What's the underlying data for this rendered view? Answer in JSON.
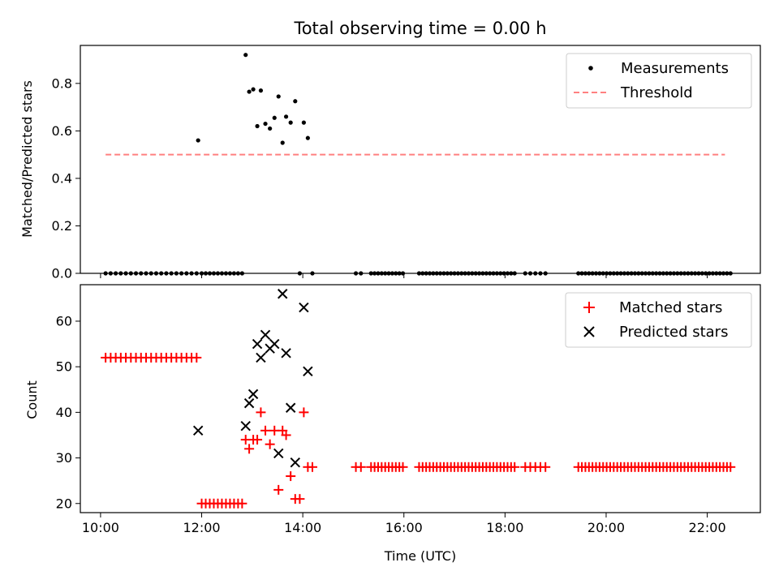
{
  "chart_data": [
    {
      "type": "scatter",
      "title": "Total observing time = 0.00 h",
      "xlabel": "",
      "ylabel": "Matched/Predicted stars",
      "xlim": [
        9.6,
        23.05
      ],
      "ylim": [
        0.0,
        0.96
      ],
      "yticks": [
        0.0,
        0.2,
        0.4,
        0.6,
        0.8
      ],
      "ytick_labels": [
        "0.0",
        "0.2",
        "0.4",
        "0.6",
        "0.8"
      ],
      "legend": {
        "placement": "top-right",
        "entries": [
          "Measurements",
          "Threshold"
        ]
      },
      "series": [
        {
          "name": "Measurements",
          "marker": "dot",
          "color": "#000000",
          "points": [
            [
              11.93,
              0.56
            ],
            [
              12.87,
              0.92
            ],
            [
              12.94,
              0.765
            ],
            [
              13.02,
              0.775
            ],
            [
              13.1,
              0.62
            ],
            [
              13.17,
              0.77
            ],
            [
              13.26,
              0.63
            ],
            [
              13.35,
              0.61
            ],
            [
              13.44,
              0.655
            ],
            [
              13.52,
              0.745
            ],
            [
              13.6,
              0.55
            ],
            [
              13.67,
              0.66
            ],
            [
              13.76,
              0.635
            ],
            [
              13.85,
              0.725
            ],
            [
              14.02,
              0.635
            ],
            [
              14.1,
              0.57
            ],
            [
              13.94,
              0.0
            ],
            [
              14.19,
              0.0
            ]
          ],
          "zero_ranges": [
            [
              10.1,
              11.9,
              0.1
            ],
            [
              12.0,
              12.8,
              0.08
            ],
            [
              15.05,
              15.15,
              0.1
            ],
            [
              15.35,
              16.0,
              0.07
            ],
            [
              16.3,
              18.2,
              0.07
            ],
            [
              18.4,
              18.8,
              0.1
            ],
            [
              19.45,
              22.45,
              0.07
            ]
          ]
        },
        {
          "name": "Threshold",
          "style": "dashed",
          "color": "#ff8080",
          "x": [
            10.1,
            22.35
          ],
          "y": [
            0.5,
            0.5
          ]
        }
      ]
    },
    {
      "type": "scatter",
      "title": "",
      "xlabel": "Time (UTC)",
      "ylabel": "Count",
      "xlim": [
        9.6,
        23.05
      ],
      "ylim": [
        18,
        68
      ],
      "xticks": [
        10,
        12,
        14,
        16,
        18,
        20,
        22
      ],
      "xtick_labels": [
        "10:00",
        "12:00",
        "14:00",
        "16:00",
        "18:00",
        "20:00",
        "22:00"
      ],
      "yticks": [
        20,
        30,
        40,
        50,
        60
      ],
      "ytick_labels": [
        "20",
        "30",
        "40",
        "50",
        "60"
      ],
      "legend": {
        "placement": "top-right",
        "entries": [
          "Matched stars",
          "Predicted stars"
        ]
      },
      "series": [
        {
          "name": "Matched stars",
          "marker": "plus",
          "color": "#ff0000",
          "ranges": [
            [
              10.1,
              11.9,
              0.1,
              52
            ],
            [
              12.0,
              12.8,
              0.08,
              20
            ],
            [
              15.05,
              15.15,
              0.1,
              28
            ],
            [
              15.35,
              16.0,
              0.07,
              28
            ],
            [
              16.3,
              18.2,
              0.07,
              28
            ],
            [
              18.4,
              18.8,
              0.1,
              28
            ],
            [
              19.45,
              22.45,
              0.07,
              28
            ]
          ],
          "points": [
            [
              12.87,
              34
            ],
            [
              12.94,
              32
            ],
            [
              13.02,
              34
            ],
            [
              13.1,
              34
            ],
            [
              13.17,
              40
            ],
            [
              13.26,
              36
            ],
            [
              13.35,
              33
            ],
            [
              13.44,
              36
            ],
            [
              13.52,
              23
            ],
            [
              13.6,
              36
            ],
            [
              13.67,
              35
            ],
            [
              13.76,
              26
            ],
            [
              13.85,
              21
            ],
            [
              13.94,
              21
            ],
            [
              14.02,
              40
            ],
            [
              14.1,
              28
            ],
            [
              14.19,
              28
            ]
          ]
        },
        {
          "name": "Predicted stars",
          "marker": "x",
          "color": "#000000",
          "points": [
            [
              11.93,
              36
            ],
            [
              12.87,
              37
            ],
            [
              12.94,
              42
            ],
            [
              13.02,
              44
            ],
            [
              13.1,
              55
            ],
            [
              13.17,
              52
            ],
            [
              13.26,
              57
            ],
            [
              13.35,
              54
            ],
            [
              13.44,
              55
            ],
            [
              13.52,
              31
            ],
            [
              13.6,
              66
            ],
            [
              13.67,
              53
            ],
            [
              13.76,
              41
            ],
            [
              13.85,
              29
            ],
            [
              14.02,
              63
            ],
            [
              14.1,
              49
            ]
          ]
        }
      ]
    }
  ]
}
